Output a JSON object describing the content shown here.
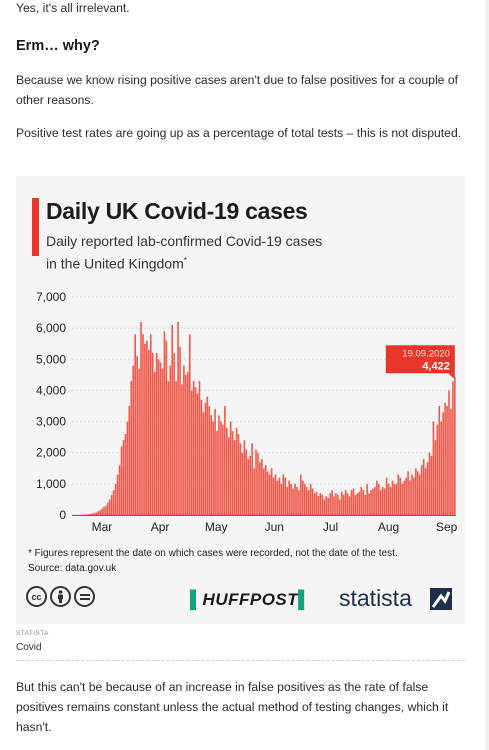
{
  "article": {
    "top_line": "Yes, it's all irrelevant.",
    "heading": "Erm… why?",
    "para1": "Because we know rising positive cases aren't due to false positives for a couple of other reasons.",
    "para2": "Positive test rates are going up as a percentage of total tests – this is not disputed.",
    "caption_source": "STATISTA",
    "caption": "Covid",
    "para3": "But this can't be because of an increase in false positives as the rate of false positives remains constant unless the actual method of testing changes, which it hasn't."
  },
  "chart_data": {
    "type": "bar",
    "title": "Daily UK Covid-19 cases",
    "subtitle_line1": "Daily reported lab-confirmed Covid-19 cases",
    "subtitle_line2": "in the United Kingdom",
    "subtitle_mark": "*",
    "ylim": [
      0,
      7000
    ],
    "yticks": [
      "7,000",
      "6,000",
      "5,000",
      "4,000",
      "3,000",
      "2,000",
      "1,000",
      "0"
    ],
    "ytick_values": [
      7000,
      6000,
      5000,
      4000,
      3000,
      2000,
      1000,
      0
    ],
    "xticks": [
      "Mar",
      "Apr",
      "May",
      "Jun",
      "Jul",
      "Aug",
      "Sep"
    ],
    "xtick_dates": [
      "2020-03-15",
      "2020-04-15",
      "2020-05-15",
      "2020-06-15",
      "2020-07-15",
      "2020-08-15",
      "2020-09-15"
    ],
    "x_start": "2020-02-28",
    "x_end": "2020-09-19",
    "color": "#f0584a",
    "callout": {
      "date": "19.09.2020",
      "value": "4,422"
    },
    "values": [
      3,
      4,
      5,
      6,
      8,
      10,
      14,
      20,
      25,
      35,
      50,
      60,
      80,
      120,
      150,
      200,
      260,
      300,
      400,
      500,
      650,
      800,
      1000,
      1300,
      1600,
      2200,
      2400,
      2600,
      3000,
      3500,
      4300,
      4800,
      5800,
      5100,
      4700,
      6200,
      5800,
      5500,
      5600,
      5300,
      5800,
      5200,
      4600,
      5200,
      5000,
      4900,
      4700,
      5900,
      5600,
      4300,
      4800,
      6100,
      5200,
      4300,
      6200,
      5400,
      4200,
      4800,
      4500,
      4600,
      5800,
      4000,
      4300,
      4100,
      3900,
      4300,
      3700,
      3300,
      3600,
      3800,
      3500,
      3200,
      3000,
      3400,
      2700,
      3200,
      3000,
      2900,
      3500,
      2800,
      2500,
      3000,
      2700,
      2400,
      2800,
      2600,
      2300,
      2000,
      2400,
      2100,
      1800,
      1900,
      2300,
      1500,
      2100,
      2000,
      1700,
      1800,
      1500,
      1600,
      1400,
      1300,
      1500,
      1200,
      1300,
      1100,
      1200,
      1000,
      1300,
      1200,
      900,
      1100,
      1000,
      850,
      1000,
      900,
      800,
      1300,
      1100,
      1000,
      900,
      800,
      1000,
      850,
      700,
      750,
      600,
      700,
      650,
      500,
      600,
      550,
      700,
      800,
      600,
      700,
      650,
      500,
      750,
      650,
      800,
      700,
      600,
      800,
      850,
      650,
      700,
      750,
      900,
      800,
      650,
      1000,
      700,
      800,
      850,
      900,
      1100,
      1000,
      800,
      900,
      850,
      1200,
      1000,
      900,
      1100,
      1000,
      1000,
      1300,
      1200,
      1000,
      1100,
      1200,
      1400,
      1100,
      1300,
      1200,
      1500,
      1400,
      1300,
      1600,
      1800,
      1500,
      1700,
      2000,
      1900,
      3000,
      2400,
      2900,
      3500,
      3000,
      3300,
      3600,
      3500,
      4000,
      3400,
      4300,
      4422
    ],
    "footnote": "* Figures represent the date on which cases were recorded, not the date of the test.",
    "source": "Source: data.gov.uk",
    "brand_left": "HUFFPOST",
    "brand_right": "statista"
  },
  "icons": [
    "cc-icon",
    "by-icon",
    "nd-icon"
  ]
}
